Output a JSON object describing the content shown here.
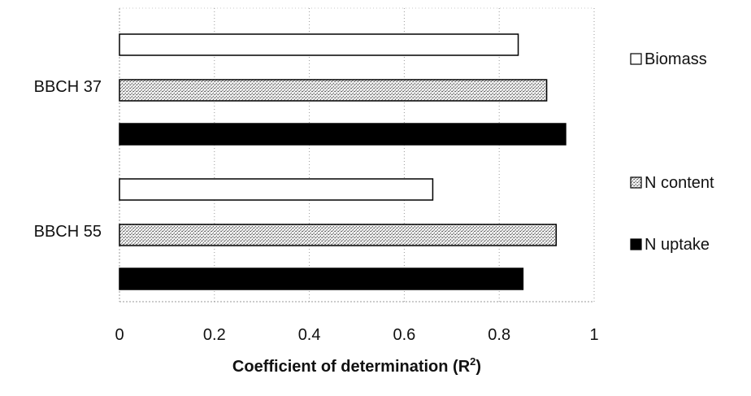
{
  "chart_data": {
    "type": "bar",
    "orientation": "horizontal",
    "categories": [
      "BBCH 37",
      "BBCH 55"
    ],
    "series": [
      {
        "name": "Biomass",
        "values": [
          0.84,
          0.66
        ],
        "color": "#ffffff",
        "pattern": "none"
      },
      {
        "name": "N content",
        "values": [
          0.9,
          0.92
        ],
        "color": "#d2d2d2",
        "pattern": "stipple"
      },
      {
        "name": "N uptake",
        "values": [
          0.94,
          0.85
        ],
        "color": "#000000",
        "pattern": "none"
      }
    ],
    "xlim": [
      0,
      1
    ],
    "x_ticks": [
      "0",
      "0.2",
      "0.4",
      "0.6",
      "0.8",
      "1"
    ],
    "xlabel_main": "Coefficient of determination (R",
    "xlabel_sup": "2",
    "xlabel_end": ")",
    "ylabel": "",
    "title": "",
    "grid": "vertical dotted",
    "legend_position": "right"
  }
}
